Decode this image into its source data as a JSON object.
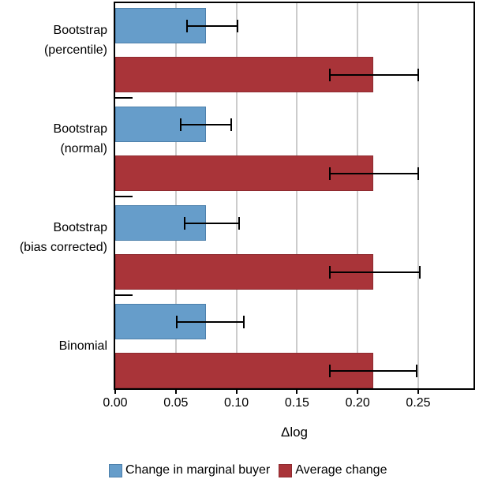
{
  "chart_data": {
    "type": "bar",
    "orientation": "horizontal",
    "xlabel": "Δlog",
    "x_ticks": [
      "0.00",
      "0.05",
      "0.10",
      "0.15",
      "0.20",
      "0.25"
    ],
    "x_tick_values": [
      0,
      0.05,
      0.1,
      0.15,
      0.2,
      0.25
    ],
    "xlim": [
      0,
      0.297
    ],
    "grid": "vertical",
    "gridline_color": "#cccccc",
    "axis_color": "#000000",
    "legend_position": "bottom",
    "categories": [
      "Bootstrap (percentile)",
      "Bootstrap (normal)",
      "Bootstrap (bias corrected)",
      "Binomial"
    ],
    "category_label_lines": [
      [
        "Bootstrap",
        "(percentile)"
      ],
      [
        "Bootstrap",
        "(normal)"
      ],
      [
        "Bootstrap",
        "(bias corrected)"
      ],
      [
        "Binomial"
      ]
    ],
    "series": [
      {
        "name": "Change in marginal buyer",
        "color": "#669dca",
        "border_color": "#4d80ab",
        "values": [
          0.075,
          0.075,
          0.075,
          0.075
        ],
        "ci_low": [
          0.059,
          0.054,
          0.057,
          0.051
        ],
        "ci_high": [
          0.101,
          0.096,
          0.102,
          0.106
        ]
      },
      {
        "name": "Average change",
        "color": "#a93439",
        "border_color": "#8e2a2f",
        "values": [
          0.213,
          0.213,
          0.213,
          0.213
        ],
        "ci_low": [
          0.177,
          0.177,
          0.177,
          0.177
        ],
        "ci_high": [
          0.25,
          0.25,
          0.251,
          0.249
        ]
      }
    ]
  }
}
